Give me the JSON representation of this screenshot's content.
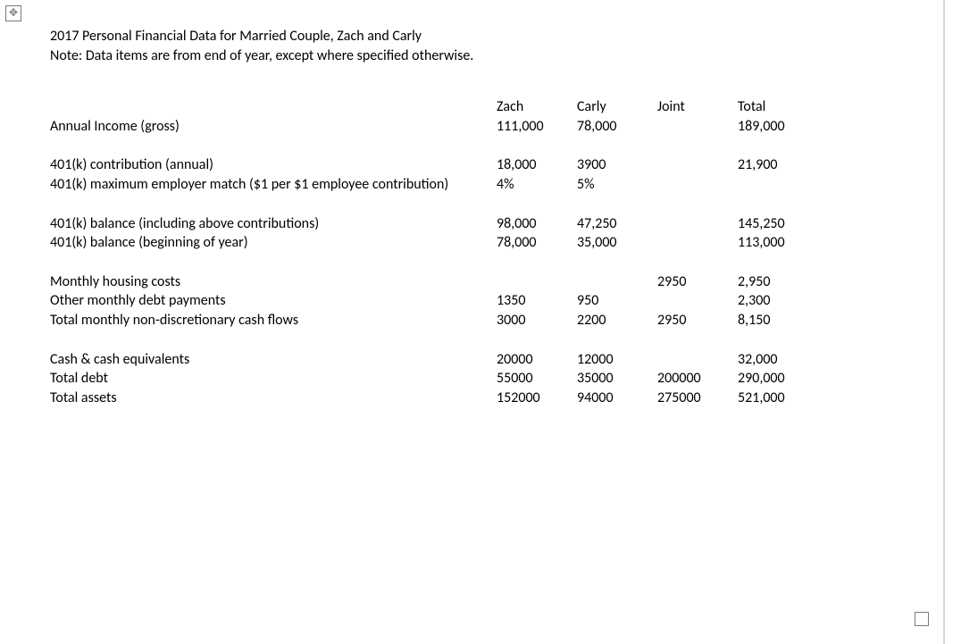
{
  "meta": {
    "text_color": "#000000",
    "background_color": "#ffffff",
    "rule_color": "#d9d9d9",
    "font_family": "Calibri",
    "font_size_pt": 12
  },
  "header": {
    "title": "2017 Personal Financial Data for Married Couple, Zach and Carly",
    "note": "Note: Data items are from end of year, except where specified otherwise."
  },
  "columns": {
    "c1": "Zach",
    "c2": "Carly",
    "c3": "Joint",
    "c4": "Total"
  },
  "rows": {
    "annual_income": {
      "label": "Annual Income (gross)",
      "zach": "111,000",
      "carly": "78,000",
      "joint": "",
      "total": "189,000"
    },
    "k401_contrib": {
      "label": "401(k) contribution (annual)",
      "zach": "18,000",
      "carly": "3900",
      "joint": "",
      "total": "21,900"
    },
    "k401_match": {
      "label": "401(k) maximum employer match ($1 per $1 employee contribution)",
      "zach": "4%",
      "carly": "5%",
      "joint": "",
      "total": ""
    },
    "k401_balance": {
      "label": "401(k) balance (including above contributions)",
      "zach": "98,000",
      "carly": "47,250",
      "joint": "",
      "total": "145,250"
    },
    "k401_balance_begin": {
      "label": "401(k) balance (beginning of year)",
      "zach": "78,000",
      "carly": "35,000",
      "joint": "",
      "total": "113,000"
    },
    "housing": {
      "label": "Monthly housing costs",
      "zach": "",
      "carly": "",
      "joint": "2950",
      "total": "2,950"
    },
    "other_debt": {
      "label": "Other monthly debt payments",
      "zach": "1350",
      "carly": "950",
      "joint": "",
      "total": "2,300"
    },
    "nondisc": {
      "label": "Total monthly non-discretionary cash flows",
      "zach": "3000",
      "carly": "2200",
      "joint": "2950",
      "total": "8,150"
    },
    "cash": {
      "label": "Cash & cash equivalents",
      "zach": "20000",
      "carly": "12000",
      "joint": "",
      "total": "32,000"
    },
    "total_debt": {
      "label": "Total debt",
      "zach": "55000",
      "carly": "35000",
      "joint": "200000",
      "total": "290,000"
    },
    "total_assets": {
      "label": "Total assets",
      "zach": "152000",
      "carly": "94000",
      "joint": "275000",
      "total": "521,000"
    }
  }
}
